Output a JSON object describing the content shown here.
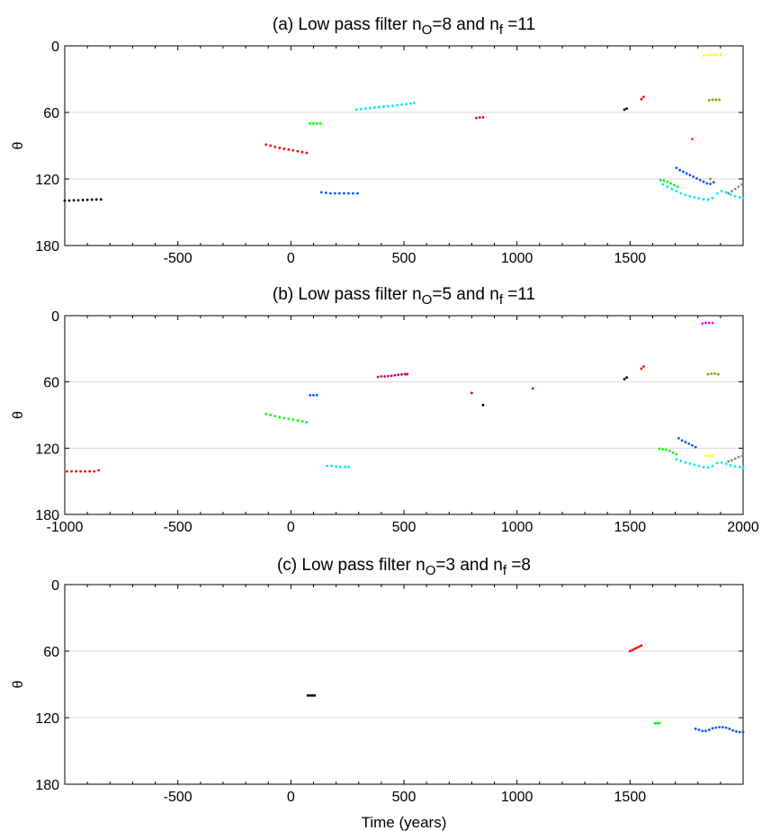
{
  "figure": {
    "xlabel": "Time (years)"
  },
  "chart_data": [
    {
      "type": "scatter",
      "title_parts": [
        "(a) Low pass filter n",
        "O",
        "=8 and n",
        "f",
        " =11"
      ],
      "ylabel": "θ",
      "xlim": [
        -1000,
        2000
      ],
      "ylim": [
        0,
        180
      ],
      "y_inverted": true,
      "x_ticks": [
        -500,
        0,
        500,
        1000,
        1500
      ],
      "x_tick_labels": [
        "-500",
        "0",
        "500",
        "1000",
        "1500"
      ],
      "y_ticks": [
        0,
        60,
        120,
        180
      ],
      "y_tick_labels": [
        "0",
        "60",
        "120",
        "180"
      ],
      "gridlines_y": [
        60,
        120
      ],
      "series": [
        {
          "color": "#000000",
          "x": [
            -1000,
            -980,
            -960,
            -940,
            -920,
            -900,
            -880,
            -860,
            -840
          ],
          "y": [
            139.5,
            139.5,
            139.2,
            139.2,
            139,
            138.8,
            138.6,
            138.5,
            138.4
          ]
        },
        {
          "color": "#ff0000",
          "x": [
            -110,
            -90,
            -70,
            -50,
            -30,
            -10,
            10,
            30,
            50,
            70
          ],
          "y": [
            89,
            90,
            91,
            92,
            92.8,
            93.5,
            94.2,
            95,
            95.8,
            96.5
          ]
        },
        {
          "color": "#00ff00",
          "x": [
            85,
            100,
            115,
            130
          ],
          "y": [
            70,
            70,
            70,
            70
          ]
        },
        {
          "color": "#0055ff",
          "x": [
            135,
            155,
            175,
            195,
            215,
            235,
            255,
            275,
            295
          ],
          "y": [
            132,
            132.5,
            133,
            133,
            133,
            133,
            133,
            133,
            133
          ]
        },
        {
          "color": "#00e5ff",
          "x": [
            290,
            310,
            330,
            350,
            370,
            390,
            410,
            430,
            450,
            470,
            490,
            510,
            530,
            545
          ],
          "y": [
            57.5,
            57,
            56.5,
            56,
            55.5,
            55.2,
            54.8,
            54.4,
            54,
            53.5,
            53,
            52.5,
            52,
            51.5
          ]
        },
        {
          "color": "#cc0066",
          "x": [
            820,
            835,
            850
          ],
          "y": [
            65,
            64.5,
            64.5
          ]
        },
        {
          "color": "#000000",
          "x": [
            1475,
            1485
          ],
          "y": [
            57.5,
            56.5
          ]
        },
        {
          "color": "#ff0000",
          "x": [
            1550,
            1560
          ],
          "y": [
            48,
            46
          ]
        },
        {
          "color": "#ff00ff",
          "x": [
            1775
          ],
          "y": [
            84
          ]
        },
        {
          "color": "#00ff00",
          "x": [
            1635,
            1650,
            1665,
            1680,
            1695,
            1710
          ],
          "y": [
            121,
            121.5,
            122.5,
            124,
            125.5,
            127
          ]
        },
        {
          "color": "#0055ff",
          "x": [
            1705,
            1720,
            1735,
            1750,
            1765,
            1780,
            1795,
            1810,
            1825,
            1840,
            1855,
            1870
          ],
          "y": [
            110,
            112,
            113.5,
            115,
            116.5,
            118,
            119.5,
            121,
            122.5,
            124,
            124.5,
            123
          ]
        },
        {
          "color": "#00e5ff",
          "x": [
            1645,
            1665,
            1685,
            1705,
            1725,
            1745,
            1765,
            1785,
            1805,
            1825,
            1845,
            1865,
            1885,
            1905,
            1925,
            1945,
            1965,
            1985,
            2000
          ],
          "y": [
            125,
            127,
            129,
            131,
            133,
            134.5,
            135.5,
            136.5,
            137.5,
            138.3,
            138.6,
            137,
            133,
            131,
            132,
            134,
            135.5,
            136.5,
            137
          ]
        },
        {
          "color": "#ffff00",
          "x": [
            1825,
            1840,
            1855,
            1870,
            1885,
            1900
          ],
          "y": [
            9,
            8.5,
            8,
            8,
            8,
            8
          ]
        },
        {
          "color": "#999900",
          "x": [
            1850,
            1865,
            1880,
            1895
          ],
          "y": [
            49,
            48.5,
            48.5,
            48.5
          ]
        },
        {
          "color": "#999900",
          "x": [
            1855
          ],
          "y": [
            120
          ]
        },
        {
          "color": "#888888",
          "x": [
            1935,
            1950,
            1965,
            1980,
            1995
          ],
          "y": [
            133,
            131,
            129,
            127,
            125
          ]
        }
      ]
    },
    {
      "type": "scatter",
      "title_parts": [
        "(b) Low pass filter n",
        "O",
        "=5 and n",
        "f",
        " =11"
      ],
      "ylabel": "θ",
      "xlim": [
        -1000,
        2000
      ],
      "ylim": [
        0,
        180
      ],
      "y_inverted": true,
      "x_ticks": [
        -1000,
        -500,
        0,
        500,
        1000,
        1500,
        2000
      ],
      "x_tick_labels": [
        "-1000",
        "-500",
        "0",
        "500",
        "1000",
        "1500",
        "2000"
      ],
      "y_ticks": [
        0,
        60,
        120,
        180
      ],
      "y_tick_labels": [
        "0",
        "60",
        "120",
        "180"
      ],
      "gridlines_y": [
        60,
        120
      ],
      "series": [
        {
          "color": "#ff0000",
          "x": [
            -990,
            -970,
            -950,
            -930,
            -910,
            -890,
            -870,
            -850
          ],
          "y": [
            141,
            141,
            141,
            141,
            141,
            141,
            141,
            140
          ]
        },
        {
          "color": "#00ff00",
          "x": [
            -110,
            -90,
            -70,
            -50,
            -30,
            -10,
            10,
            30,
            50,
            70
          ],
          "y": [
            89,
            90,
            91,
            92,
            92.8,
            93.5,
            94.2,
            95,
            95.8,
            96.5
          ]
        },
        {
          "color": "#0055ff",
          "x": [
            85,
            100,
            115
          ],
          "y": [
            72,
            72,
            72
          ]
        },
        {
          "color": "#00e5ff",
          "x": [
            160,
            180,
            200,
            220,
            240,
            255
          ],
          "y": [
            136,
            136,
            136.5,
            137,
            137,
            137
          ]
        },
        {
          "color": "#cc0066",
          "x": [
            385,
            400,
            415,
            430,
            445,
            460,
            475,
            490,
            505,
            515
          ],
          "y": [
            55.5,
            55,
            55,
            54.8,
            54.5,
            54,
            53.5,
            53.2,
            53,
            53
          ]
        },
        {
          "color": "#cc0066",
          "x": [
            800
          ],
          "y": [
            70
          ]
        },
        {
          "color": "#000000",
          "x": [
            850
          ],
          "y": [
            81
          ]
        },
        {
          "color": "#0055ff",
          "x": [
            1070
          ],
          "y": [
            66
          ]
        },
        {
          "color": "#000000",
          "x": [
            1475,
            1485
          ],
          "y": [
            57.5,
            56
          ]
        },
        {
          "color": "#ff0000",
          "x": [
            1550,
            1560
          ],
          "y": [
            48,
            46
          ]
        },
        {
          "color": "#ff00ff",
          "x": [
            1820,
            1835,
            1850,
            1865
          ],
          "y": [
            7,
            6.5,
            6.5,
            6.5
          ]
        },
        {
          "color": "#999900",
          "x": [
            1845,
            1860,
            1875,
            1890
          ],
          "y": [
            53,
            52.5,
            52.5,
            53
          ]
        },
        {
          "color": "#00ff00",
          "x": [
            1630,
            1645,
            1660,
            1675,
            1690,
            1705
          ],
          "y": [
            120.5,
            121,
            121.5,
            122.5,
            124,
            125.5
          ]
        },
        {
          "color": "#0055ff",
          "x": [
            1715,
            1730,
            1745,
            1760,
            1775,
            1790
          ],
          "y": [
            111,
            113,
            114.5,
            116,
            117.5,
            119
          ]
        },
        {
          "color": "#ffff00",
          "x": [
            1835,
            1850,
            1865
          ],
          "y": [
            127,
            127,
            127
          ]
        },
        {
          "color": "#00e5ff",
          "x": [
            1705,
            1725,
            1745,
            1765,
            1785,
            1805,
            1825,
            1845,
            1865,
            1885,
            1905,
            1925,
            1945,
            1965,
            1985,
            2000
          ],
          "y": [
            130,
            131.5,
            133,
            134,
            135,
            136,
            137,
            137.5,
            136,
            133.5,
            133,
            134,
            135.5,
            136.5,
            137,
            137.5
          ]
        },
        {
          "color": "#888888",
          "x": [
            1935,
            1950,
            1965,
            1980,
            1995
          ],
          "y": [
            132,
            131,
            129.5,
            128,
            127
          ]
        }
      ]
    },
    {
      "type": "scatter",
      "title_parts": [
        "(c) Low pass filter n",
        "O",
        "=3 and n",
        "f",
        " =8"
      ],
      "ylabel": "θ",
      "xlabel": "Time (years)",
      "xlim": [
        -1000,
        2000
      ],
      "ylim": [
        0,
        180
      ],
      "y_inverted": true,
      "x_ticks": [
        -500,
        0,
        500,
        1000,
        1500
      ],
      "x_tick_labels": [
        "-500",
        "0",
        "500",
        "1000",
        "1500"
      ],
      "y_ticks": [
        0,
        60,
        120,
        180
      ],
      "y_tick_labels": [
        "0",
        "60",
        "120",
        "180"
      ],
      "gridlines_y": [
        60,
        120
      ],
      "series": [
        {
          "color": "#000000",
          "x": [
            75,
            85,
            95,
            105
          ],
          "y": [
            100,
            100,
            100,
            100
          ]
        },
        {
          "color": "#ff0000",
          "x": [
            1500,
            1510,
            1520,
            1530,
            1540,
            1550
          ],
          "y": [
            60,
            59,
            58,
            57,
            56,
            55
          ]
        },
        {
          "color": "#00ff00",
          "x": [
            1610,
            1620,
            1630
          ],
          "y": [
            125,
            125,
            125
          ]
        },
        {
          "color": "#0055ff",
          "x": [
            1790,
            1805,
            1820,
            1835,
            1850,
            1865,
            1880,
            1895,
            1910,
            1925,
            1940,
            1955,
            1970,
            1985,
            2000
          ],
          "y": [
            130,
            131,
            132,
            132,
            131,
            129.5,
            129,
            128.5,
            128.5,
            129,
            130,
            131.5,
            132.5,
            133,
            133
          ]
        }
      ]
    }
  ]
}
